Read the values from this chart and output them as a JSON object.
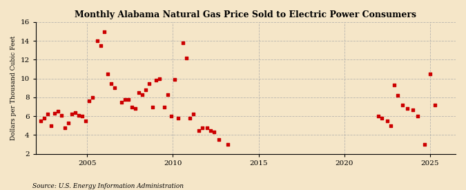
{
  "title": "Monthly Alabama Natural Gas Price Sold to Electric Power Consumers",
  "ylabel": "Dollars per Thousand Cubic Feet",
  "source": "Source: U.S. Energy Information Administration",
  "background_color": "#f5e6c8",
  "marker_color": "#cc0000",
  "xlim": [
    2002.0,
    2026.5
  ],
  "ylim": [
    2,
    16
  ],
  "xticks": [
    2005,
    2010,
    2015,
    2020,
    2025
  ],
  "yticks": [
    2,
    4,
    6,
    8,
    10,
    12,
    14,
    16
  ],
  "data_x": [
    2002.3,
    2002.5,
    2002.7,
    2002.9,
    2003.1,
    2003.3,
    2003.5,
    2003.7,
    2003.9,
    2004.1,
    2004.3,
    2004.5,
    2004.7,
    2004.9,
    2005.1,
    2005.3,
    2005.6,
    2005.8,
    2006.0,
    2006.2,
    2006.4,
    2006.6,
    2007.0,
    2007.2,
    2007.4,
    2007.6,
    2007.8,
    2008.0,
    2008.2,
    2008.4,
    2008.6,
    2008.8,
    2009.0,
    2009.2,
    2009.5,
    2009.7,
    2009.9,
    2010.1,
    2010.3,
    2010.6,
    2010.8,
    2011.0,
    2011.2,
    2011.5,
    2011.7,
    2012.0,
    2012.2,
    2012.4,
    2012.7,
    2013.2,
    2022.0,
    2022.2,
    2022.5,
    2022.7,
    2022.9,
    2023.1,
    2023.4,
    2023.7,
    2024.0,
    2024.3,
    2024.7,
    2025.0,
    2025.3
  ],
  "data_y": [
    5.5,
    5.8,
    6.2,
    5.0,
    6.3,
    6.5,
    6.1,
    4.8,
    5.3,
    6.2,
    6.4,
    6.1,
    6.0,
    5.5,
    7.6,
    8.0,
    14.0,
    13.5,
    15.0,
    10.5,
    9.5,
    9.0,
    7.5,
    7.8,
    7.8,
    7.0,
    6.8,
    8.5,
    8.3,
    8.8,
    9.5,
    7.0,
    9.8,
    10.0,
    7.0,
    8.3,
    6.0,
    9.9,
    5.8,
    13.8,
    12.2,
    5.8,
    6.2,
    4.5,
    4.8,
    4.8,
    4.5,
    4.3,
    3.5,
    3.0,
    6.0,
    5.8,
    5.5,
    5.0,
    9.3,
    8.2,
    7.2,
    6.8,
    6.7,
    6.0,
    3.0,
    10.5,
    7.2
  ]
}
